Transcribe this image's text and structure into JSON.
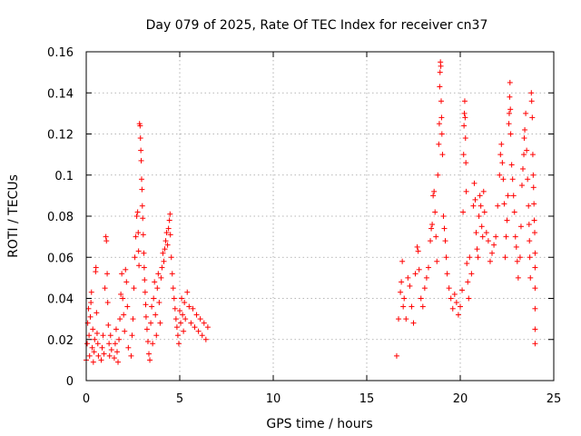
{
  "chart_data": {
    "type": "scatter",
    "title": "Day 079 of 2025, Rate Of TEC Index for receiver cn37",
    "xlabel": "GPS time / hours",
    "ylabel": "ROTI / TECUs",
    "xlim": [
      0,
      25
    ],
    "ylim": [
      0,
      0.16
    ],
    "xticks": [
      0,
      5,
      10,
      15,
      20,
      25
    ],
    "yticks": [
      0,
      0.02,
      0.04,
      0.06,
      0.08,
      0.1,
      0.12,
      0.14,
      0.16
    ],
    "xtick_labels": [
      "0",
      "5",
      "10",
      "15",
      "20",
      "25"
    ],
    "ytick_labels": [
      "0",
      "0.02",
      "0.04",
      "0.06",
      "0.08",
      "0.1",
      "0.12",
      "0.14",
      "0.16"
    ],
    "grid": true,
    "marker": "+",
    "color": "#ff0000",
    "series": [
      {
        "points": [
          [
            0.0,
            0.01
          ],
          [
            0.05,
            0.018
          ],
          [
            0.08,
            0.028
          ],
          [
            0.12,
            0.035
          ],
          [
            0.15,
            0.022
          ],
          [
            0.18,
            0.012
          ],
          [
            0.22,
            0.031
          ],
          [
            0.25,
            0.038
          ],
          [
            0.28,
            0.043
          ],
          [
            0.32,
            0.016
          ],
          [
            0.35,
            0.025
          ],
          [
            0.38,
            0.009
          ],
          [
            0.42,
            0.014
          ],
          [
            0.45,
            0.02
          ],
          [
            0.5,
            0.053
          ],
          [
            0.52,
            0.055
          ],
          [
            0.55,
            0.033
          ],
          [
            0.58,
            0.023
          ],
          [
            0.62,
            0.018
          ],
          [
            0.65,
            0.012
          ],
          [
            0.8,
            0.01
          ],
          [
            0.85,
            0.016
          ],
          [
            0.9,
            0.022
          ],
          [
            0.95,
            0.013
          ],
          [
            1.0,
            0.045
          ],
          [
            1.05,
            0.07
          ],
          [
            1.08,
            0.068
          ],
          [
            1.12,
            0.052
          ],
          [
            1.15,
            0.038
          ],
          [
            1.18,
            0.027
          ],
          [
            1.22,
            0.018
          ],
          [
            1.25,
            0.012
          ],
          [
            1.3,
            0.022
          ],
          [
            1.35,
            0.015
          ],
          [
            1.5,
            0.011
          ],
          [
            1.55,
            0.018
          ],
          [
            1.6,
            0.025
          ],
          [
            1.65,
            0.014
          ],
          [
            1.7,
            0.009
          ],
          [
            1.75,
            0.02
          ],
          [
            1.8,
            0.03
          ],
          [
            1.85,
            0.042
          ],
          [
            1.9,
            0.052
          ],
          [
            1.95,
            0.04
          ],
          [
            2.0,
            0.032
          ],
          [
            2.05,
            0.024
          ],
          [
            2.1,
            0.054
          ],
          [
            2.15,
            0.048
          ],
          [
            2.2,
            0.036
          ],
          [
            2.25,
            0.016
          ],
          [
            2.4,
            0.012
          ],
          [
            2.45,
            0.022
          ],
          [
            2.5,
            0.03
          ],
          [
            2.55,
            0.045
          ],
          [
            2.6,
            0.06
          ],
          [
            2.65,
            0.07
          ],
          [
            2.7,
            0.08
          ],
          [
            2.75,
            0.082
          ],
          [
            2.78,
            0.072
          ],
          [
            2.8,
            0.063
          ],
          [
            2.82,
            0.056
          ],
          [
            2.85,
            0.125
          ],
          [
            2.88,
            0.124
          ],
          [
            2.9,
            0.118
          ],
          [
            2.92,
            0.112
          ],
          [
            2.94,
            0.107
          ],
          [
            2.96,
            0.098
          ],
          [
            2.98,
            0.093
          ],
          [
            3.0,
            0.085
          ],
          [
            3.02,
            0.079
          ],
          [
            3.05,
            0.071
          ],
          [
            3.08,
            0.062
          ],
          [
            3.1,
            0.055
          ],
          [
            3.12,
            0.049
          ],
          [
            3.15,
            0.043
          ],
          [
            3.18,
            0.037
          ],
          [
            3.2,
            0.031
          ],
          [
            3.25,
            0.025
          ],
          [
            3.3,
            0.019
          ],
          [
            3.35,
            0.013
          ],
          [
            3.4,
            0.01
          ],
          [
            3.45,
            0.028
          ],
          [
            3.5,
            0.036
          ],
          [
            3.55,
            0.018
          ],
          [
            3.6,
            0.04
          ],
          [
            3.65,
            0.048
          ],
          [
            3.7,
            0.032
          ],
          [
            3.75,
            0.022
          ],
          [
            3.8,
            0.045
          ],
          [
            3.85,
            0.052
          ],
          [
            3.9,
            0.038
          ],
          [
            3.95,
            0.028
          ],
          [
            4.0,
            0.05
          ],
          [
            4.05,
            0.055
          ],
          [
            4.1,
            0.062
          ],
          [
            4.15,
            0.058
          ],
          [
            4.2,
            0.064
          ],
          [
            4.25,
            0.068
          ],
          [
            4.3,
            0.072
          ],
          [
            4.35,
            0.066
          ],
          [
            4.4,
            0.074
          ],
          [
            4.45,
            0.078
          ],
          [
            4.48,
            0.081
          ],
          [
            4.5,
            0.071
          ],
          [
            4.55,
            0.06
          ],
          [
            4.6,
            0.052
          ],
          [
            4.65,
            0.045
          ],
          [
            4.7,
            0.04
          ],
          [
            4.75,
            0.035
          ],
          [
            4.8,
            0.03
          ],
          [
            4.85,
            0.026
          ],
          [
            4.9,
            0.022
          ],
          [
            4.95,
            0.018
          ],
          [
            5.0,
            0.034
          ],
          [
            5.05,
            0.028
          ],
          [
            5.1,
            0.04
          ],
          [
            5.15,
            0.032
          ],
          [
            5.2,
            0.024
          ],
          [
            5.25,
            0.038
          ],
          [
            5.3,
            0.03
          ],
          [
            5.4,
            0.043
          ],
          [
            5.5,
            0.036
          ],
          [
            5.6,
            0.028
          ],
          [
            5.7,
            0.035
          ],
          [
            5.8,
            0.026
          ],
          [
            5.9,
            0.032
          ],
          [
            6.0,
            0.024
          ],
          [
            6.1,
            0.03
          ],
          [
            6.2,
            0.022
          ],
          [
            6.3,
            0.028
          ],
          [
            6.4,
            0.02
          ],
          [
            6.5,
            0.026
          ],
          [
            16.6,
            0.012
          ],
          [
            16.7,
            0.03
          ],
          [
            16.8,
            0.043
          ],
          [
            16.85,
            0.048
          ],
          [
            16.9,
            0.058
          ],
          [
            16.95,
            0.036
          ],
          [
            17.0,
            0.04
          ],
          [
            17.1,
            0.03
          ],
          [
            17.2,
            0.05
          ],
          [
            17.3,
            0.046
          ],
          [
            17.4,
            0.036
          ],
          [
            17.5,
            0.028
          ],
          [
            17.6,
            0.052
          ],
          [
            17.7,
            0.065
          ],
          [
            17.75,
            0.063
          ],
          [
            17.8,
            0.054
          ],
          [
            17.9,
            0.04
          ],
          [
            18.0,
            0.036
          ],
          [
            18.1,
            0.045
          ],
          [
            18.2,
            0.05
          ],
          [
            18.3,
            0.055
          ],
          [
            18.4,
            0.068
          ],
          [
            18.45,
            0.074
          ],
          [
            18.5,
            0.076
          ],
          [
            18.55,
            0.09
          ],
          [
            18.6,
            0.092
          ],
          [
            18.65,
            0.082
          ],
          [
            18.7,
            0.07
          ],
          [
            18.75,
            0.058
          ],
          [
            18.8,
            0.1
          ],
          [
            18.85,
            0.115
          ],
          [
            18.88,
            0.125
          ],
          [
            18.9,
            0.143
          ],
          [
            18.92,
            0.15
          ],
          [
            18.94,
            0.155
          ],
          [
            18.96,
            0.153
          ],
          [
            18.98,
            0.136
          ],
          [
            19.0,
            0.128
          ],
          [
            19.02,
            0.12
          ],
          [
            19.05,
            0.11
          ],
          [
            19.1,
            0.08
          ],
          [
            19.15,
            0.074
          ],
          [
            19.2,
            0.068
          ],
          [
            19.25,
            0.06
          ],
          [
            19.3,
            0.052
          ],
          [
            19.4,
            0.045
          ],
          [
            19.5,
            0.04
          ],
          [
            19.6,
            0.035
          ],
          [
            19.7,
            0.042
          ],
          [
            19.8,
            0.038
          ],
          [
            19.9,
            0.032
          ],
          [
            20.0,
            0.036
          ],
          [
            20.1,
            0.044
          ],
          [
            20.15,
            0.082
          ],
          [
            20.18,
            0.11
          ],
          [
            20.2,
            0.124
          ],
          [
            20.22,
            0.13
          ],
          [
            20.24,
            0.136
          ],
          [
            20.26,
            0.128
          ],
          [
            20.28,
            0.118
          ],
          [
            20.3,
            0.106
          ],
          [
            20.32,
            0.092
          ],
          [
            20.35,
            0.057
          ],
          [
            20.4,
            0.048
          ],
          [
            20.45,
            0.04
          ],
          [
            20.5,
            0.06
          ],
          [
            20.6,
            0.052
          ],
          [
            20.7,
            0.085
          ],
          [
            20.75,
            0.096
          ],
          [
            20.8,
            0.088
          ],
          [
            20.85,
            0.072
          ],
          [
            20.9,
            0.064
          ],
          [
            20.95,
            0.06
          ],
          [
            21.0,
            0.08
          ],
          [
            21.05,
            0.09
          ],
          [
            21.1,
            0.085
          ],
          [
            21.15,
            0.075
          ],
          [
            21.2,
            0.07
          ],
          [
            21.25,
            0.092
          ],
          [
            21.3,
            0.082
          ],
          [
            21.4,
            0.072
          ],
          [
            21.5,
            0.068
          ],
          [
            21.6,
            0.058
          ],
          [
            21.7,
            0.062
          ],
          [
            21.8,
            0.066
          ],
          [
            21.9,
            0.07
          ],
          [
            22.0,
            0.085
          ],
          [
            22.1,
            0.1
          ],
          [
            22.15,
            0.11
          ],
          [
            22.2,
            0.115
          ],
          [
            22.25,
            0.106
          ],
          [
            22.3,
            0.098
          ],
          [
            22.35,
            0.086
          ],
          [
            22.4,
            0.06
          ],
          [
            22.45,
            0.07
          ],
          [
            22.5,
            0.078
          ],
          [
            22.55,
            0.09
          ],
          [
            22.6,
            0.125
          ],
          [
            22.62,
            0.13
          ],
          [
            22.64,
            0.138
          ],
          [
            22.66,
            0.145
          ],
          [
            22.68,
            0.132
          ],
          [
            22.7,
            0.12
          ],
          [
            22.75,
            0.105
          ],
          [
            22.8,
            0.098
          ],
          [
            22.85,
            0.09
          ],
          [
            22.9,
            0.082
          ],
          [
            22.95,
            0.07
          ],
          [
            23.0,
            0.065
          ],
          [
            23.05,
            0.058
          ],
          [
            23.1,
            0.05
          ],
          [
            23.2,
            0.06
          ],
          [
            23.25,
            0.075
          ],
          [
            23.3,
            0.095
          ],
          [
            23.35,
            0.103
          ],
          [
            23.4,
            0.11
          ],
          [
            23.42,
            0.118
          ],
          [
            23.45,
            0.122
          ],
          [
            23.5,
            0.13
          ],
          [
            23.55,
            0.112
          ],
          [
            23.6,
            0.098
          ],
          [
            23.65,
            0.085
          ],
          [
            23.68,
            0.076
          ],
          [
            23.7,
            0.068
          ],
          [
            23.72,
            0.06
          ],
          [
            23.75,
            0.05
          ],
          [
            23.8,
            0.14
          ],
          [
            23.82,
            0.136
          ],
          [
            23.85,
            0.128
          ],
          [
            23.88,
            0.11
          ],
          [
            23.9,
            0.1
          ],
          [
            23.92,
            0.094
          ],
          [
            23.94,
            0.086
          ],
          [
            23.96,
            0.078
          ],
          [
            23.98,
            0.072
          ],
          [
            24.0,
            0.062
          ],
          [
            24.0,
            0.055
          ],
          [
            24.0,
            0.045
          ],
          [
            24.0,
            0.035
          ],
          [
            24.0,
            0.025
          ],
          [
            24.0,
            0.018
          ]
        ]
      }
    ]
  }
}
